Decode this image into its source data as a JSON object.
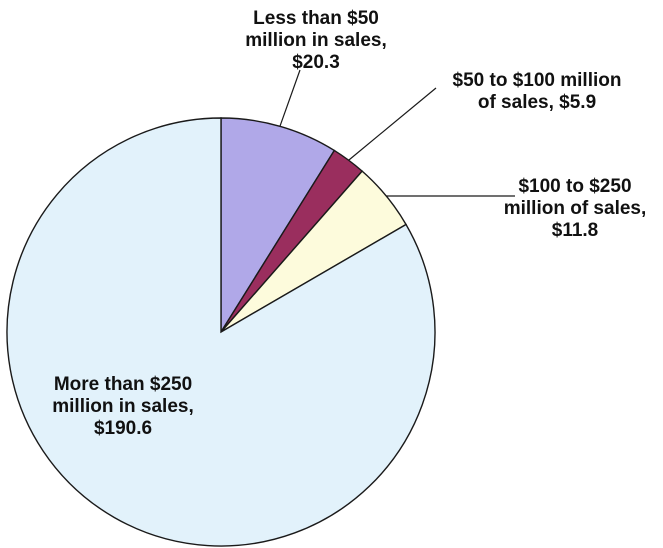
{
  "chart_data": {
    "type": "pie",
    "title": "",
    "slices": [
      {
        "lines": [
          "Less than $50",
          "million in sales,",
          "$20.3"
        ],
        "value": 20.3,
        "color": "#b0a8e8"
      },
      {
        "lines": [
          "$50 to $100 million",
          "of sales,  $5.9"
        ],
        "value": 5.9,
        "color": "#9a2e5e"
      },
      {
        "lines": [
          "$100 to $250",
          "million of sales,",
          "$11.8"
        ],
        "value": 11.8,
        "color": "#fdfbdc"
      },
      {
        "lines": [
          "More than $250",
          "million in sales,",
          "$190.6"
        ],
        "value": 190.6,
        "color": "#e2f2fb"
      }
    ],
    "start": "12 o'clock",
    "direction": "clockwise",
    "legend": "none"
  }
}
